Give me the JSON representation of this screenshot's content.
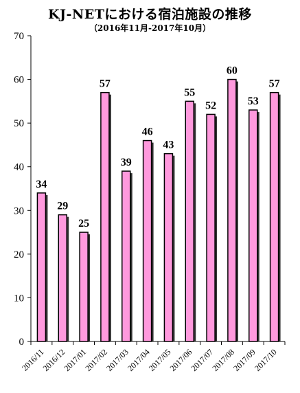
{
  "title": "KJ-NETにおける宿泊施設の推移",
  "subtitle": "（2016年11月-2017年10月）",
  "colors": {
    "bar_fill": "#ff99dd",
    "bar_stroke": "#000000",
    "bar_shadow": "#333333",
    "axis": "#000000"
  },
  "chart_data": {
    "type": "bar",
    "title": "KJ-NETにおける宿泊施設の推移",
    "subtitle": "（2016年11月-2017年10月）",
    "categories": [
      "2016/11",
      "2016/12",
      "2017/01",
      "2017/02",
      "2017/03",
      "2017/04",
      "2017/05",
      "2017/06",
      "2017/07",
      "2017/08",
      "2017/09",
      "2017/10"
    ],
    "values": [
      34,
      29,
      25,
      57,
      39,
      46,
      43,
      55,
      52,
      60,
      53,
      57
    ],
    "xlabel": "",
    "ylabel": "",
    "ylim": [
      0,
      70
    ],
    "yticks": [
      0,
      10,
      20,
      30,
      40,
      50,
      60,
      70
    ],
    "grid": false,
    "legend": "none",
    "data_labels": true
  }
}
